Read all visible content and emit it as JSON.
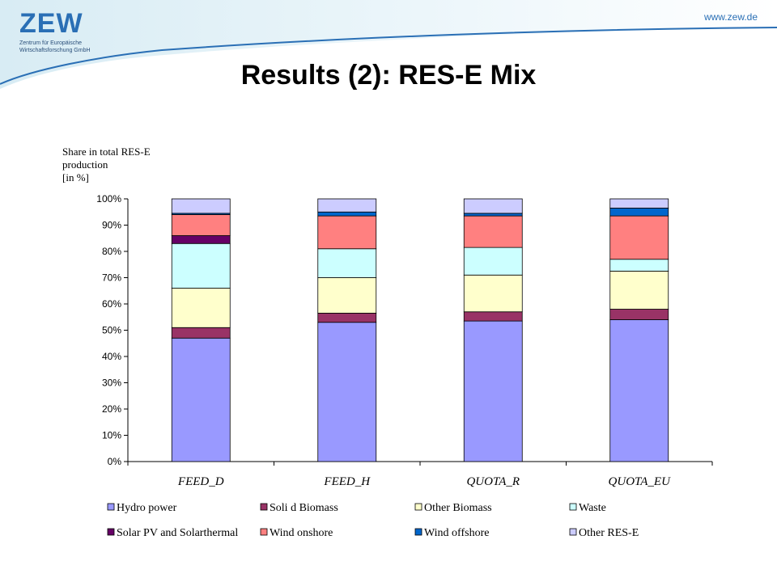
{
  "header": {
    "logo_text": "ZEW",
    "logo_subtitle": "Zentrum für Europäische Wirtschaftsforschung GmbH",
    "url": "www.zew.de"
  },
  "slide": {
    "title": "Results (2): RES-E Mix"
  },
  "chart_data": {
    "type": "bar",
    "stacked": true,
    "ylabel": "Share in total RES-E production [in %]",
    "ylabel_lines": [
      "Share in total RES-E",
      "production",
      "[in %]"
    ],
    "ylim": [
      0,
      100
    ],
    "yticks": [
      "0%",
      "10%",
      "20%",
      "30%",
      "40%",
      "50%",
      "60%",
      "70%",
      "80%",
      "90%",
      "100%"
    ],
    "categories": [
      "FEED_D",
      "FEED_H",
      "QUOTA_R",
      "QUOTA_EU"
    ],
    "series": [
      {
        "name": "Hydro power",
        "color": "#9999ff",
        "values": [
          47,
          53,
          53.5,
          54
        ]
      },
      {
        "name": "Soli d Biomass",
        "color": "#993366",
        "values": [
          4,
          3.5,
          3.5,
          4
        ]
      },
      {
        "name": "Other Biomass",
        "color": "#ffffcc",
        "values": [
          15,
          13.5,
          14,
          14.5
        ]
      },
      {
        "name": "Waste",
        "color": "#ccffff",
        "values": [
          17,
          11,
          10.5,
          4.5
        ]
      },
      {
        "name": "Solar PV and Solarthermal",
        "color": "#660066",
        "values": [
          3,
          0,
          0,
          0
        ]
      },
      {
        "name": "Wind onshore",
        "color": "#ff8080",
        "values": [
          8,
          12.5,
          12,
          16.5
        ]
      },
      {
        "name": "Wind offshore",
        "color": "#0066cc",
        "values": [
          0.5,
          1.5,
          1,
          3
        ]
      },
      {
        "name": "Other RES-E",
        "color": "#ccccff",
        "values": [
          5.5,
          5,
          5.5,
          3.5
        ]
      }
    ],
    "grid": false,
    "legend_position": "bottom"
  }
}
